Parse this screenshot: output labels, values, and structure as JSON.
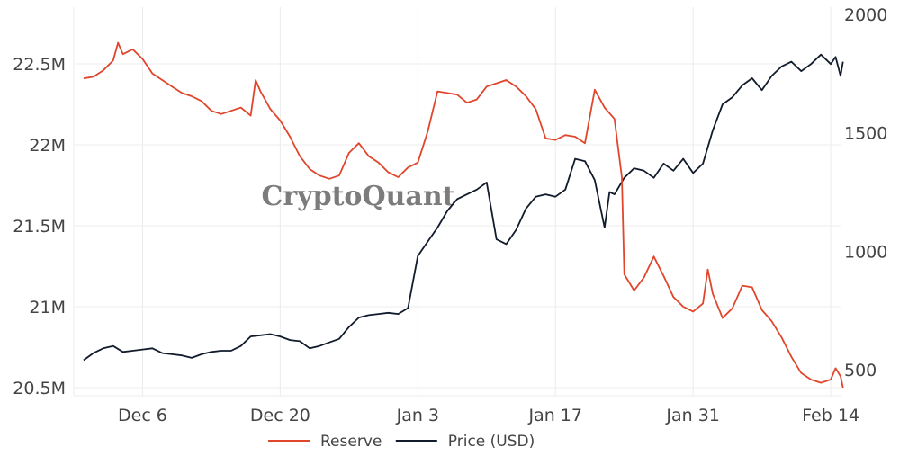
{
  "watermark": "CryptoQuant",
  "colors": {
    "reserve": "#e0462c",
    "price": "#111b2b",
    "grid": "#ececec",
    "text": "#444444"
  },
  "chart_data": {
    "type": "line",
    "grid": true,
    "legend_placement": "bottom-center",
    "x_axis": {
      "type": "date",
      "range": [
        "2020-11-29",
        "2021-02-15"
      ],
      "ticks": [
        {
          "date": "2020-12-06",
          "label": "Dec 6"
        },
        {
          "date": "2020-12-20",
          "label": "Dec 20"
        },
        {
          "date": "2021-01-03",
          "label": "Jan 3"
        },
        {
          "date": "2021-01-17",
          "label": "Jan 17"
        },
        {
          "date": "2021-01-31",
          "label": "Jan 31"
        },
        {
          "date": "2021-02-14",
          "label": "Feb 14"
        }
      ]
    },
    "y_left": {
      "range": [
        20450000,
        22850000
      ],
      "ticks": [
        {
          "value": 20500000,
          "label": "20.5M"
        },
        {
          "value": 21000000,
          "label": "21M"
        },
        {
          "value": 21500000,
          "label": "21.5M"
        },
        {
          "value": 22000000,
          "label": "22M"
        },
        {
          "value": 22500000,
          "label": "22.5M"
        }
      ]
    },
    "y_right": {
      "range": [
        390,
        2030
      ],
      "ticks": [
        {
          "value": 500,
          "label": "500"
        },
        {
          "value": 1000,
          "label": "1000"
        },
        {
          "value": 1500,
          "label": "1500"
        },
        {
          "value": 2000,
          "label": "2000"
        }
      ]
    },
    "series": [
      {
        "name": "Reserve",
        "axis": "left",
        "color": "#e0462c",
        "points": [
          [
            "2020-11-30",
            22410000
          ],
          [
            "2020-12-01",
            22420000
          ],
          [
            "2020-12-02",
            22460000
          ],
          [
            "2020-12-03",
            22520000
          ],
          [
            "2020-12-03 12:00",
            22630000
          ],
          [
            "2020-12-04",
            22560000
          ],
          [
            "2020-12-05",
            22590000
          ],
          [
            "2020-12-06",
            22530000
          ],
          [
            "2020-12-07",
            22440000
          ],
          [
            "2020-12-08",
            22400000
          ],
          [
            "2020-12-09",
            22360000
          ],
          [
            "2020-12-10",
            22320000
          ],
          [
            "2020-12-11",
            22300000
          ],
          [
            "2020-12-12",
            22270000
          ],
          [
            "2020-12-13",
            22210000
          ],
          [
            "2020-12-14",
            22190000
          ],
          [
            "2020-12-15",
            22210000
          ],
          [
            "2020-12-16",
            22230000
          ],
          [
            "2020-12-17",
            22180000
          ],
          [
            "2020-12-17 12:00",
            22400000
          ],
          [
            "2020-12-18",
            22330000
          ],
          [
            "2020-12-19",
            22220000
          ],
          [
            "2020-12-20",
            22150000
          ],
          [
            "2020-12-21",
            22050000
          ],
          [
            "2020-12-22",
            21930000
          ],
          [
            "2020-12-23",
            21850000
          ],
          [
            "2020-12-24",
            21810000
          ],
          [
            "2020-12-25",
            21790000
          ],
          [
            "2020-12-26",
            21810000
          ],
          [
            "2020-12-27",
            21950000
          ],
          [
            "2020-12-28",
            22010000
          ],
          [
            "2020-12-29",
            21930000
          ],
          [
            "2020-12-30",
            21890000
          ],
          [
            "2020-12-31",
            21830000
          ],
          [
            "2021-01-01",
            21800000
          ],
          [
            "2021-01-02",
            21860000
          ],
          [
            "2021-01-03",
            21890000
          ],
          [
            "2021-01-04",
            22080000
          ],
          [
            "2021-01-05",
            22330000
          ],
          [
            "2021-01-06",
            22320000
          ],
          [
            "2021-01-07",
            22310000
          ],
          [
            "2021-01-08",
            22260000
          ],
          [
            "2021-01-09",
            22280000
          ],
          [
            "2021-01-10",
            22360000
          ],
          [
            "2021-01-11",
            22380000
          ],
          [
            "2021-01-12",
            22400000
          ],
          [
            "2021-01-13",
            22360000
          ],
          [
            "2021-01-14",
            22300000
          ],
          [
            "2021-01-15",
            22220000
          ],
          [
            "2021-01-16",
            22040000
          ],
          [
            "2021-01-17",
            22030000
          ],
          [
            "2021-01-18",
            22060000
          ],
          [
            "2021-01-19",
            22050000
          ],
          [
            "2021-01-20",
            22010000
          ],
          [
            "2021-01-21",
            22340000
          ],
          [
            "2021-01-22",
            22230000
          ],
          [
            "2021-01-23",
            22160000
          ],
          [
            "2021-01-23 18:00",
            21800000
          ],
          [
            "2021-01-24",
            21200000
          ],
          [
            "2021-01-25",
            21100000
          ],
          [
            "2021-01-26",
            21180000
          ],
          [
            "2021-01-27",
            21310000
          ],
          [
            "2021-01-28",
            21190000
          ],
          [
            "2021-01-29",
            21060000
          ],
          [
            "2021-01-30",
            21000000
          ],
          [
            "2021-01-31",
            20970000
          ],
          [
            "2021-02-01",
            21020000
          ],
          [
            "2021-02-01 12:00",
            21230000
          ],
          [
            "2021-02-02",
            21080000
          ],
          [
            "2021-02-03",
            20930000
          ],
          [
            "2021-02-04",
            20990000
          ],
          [
            "2021-02-05",
            21130000
          ],
          [
            "2021-02-06",
            21120000
          ],
          [
            "2021-02-07",
            20980000
          ],
          [
            "2021-02-08",
            20910000
          ],
          [
            "2021-02-09",
            20810000
          ],
          [
            "2021-02-10",
            20690000
          ],
          [
            "2021-02-11",
            20590000
          ],
          [
            "2021-02-12",
            20550000
          ],
          [
            "2021-02-13",
            20530000
          ],
          [
            "2021-02-14",
            20550000
          ],
          [
            "2021-02-14 12:00",
            20620000
          ],
          [
            "2021-02-15",
            20570000
          ],
          [
            "2021-02-15 06:00",
            20500000
          ]
        ]
      },
      {
        "name": "Price (USD)",
        "axis": "right",
        "color": "#111b2b",
        "points": [
          [
            "2020-11-30",
            540
          ],
          [
            "2020-12-01",
            570
          ],
          [
            "2020-12-02",
            590
          ],
          [
            "2020-12-03",
            600
          ],
          [
            "2020-12-04",
            575
          ],
          [
            "2020-12-05",
            580
          ],
          [
            "2020-12-06",
            585
          ],
          [
            "2020-12-07",
            590
          ],
          [
            "2020-12-08",
            570
          ],
          [
            "2020-12-09",
            565
          ],
          [
            "2020-12-10",
            560
          ],
          [
            "2020-12-11",
            550
          ],
          [
            "2020-12-12",
            565
          ],
          [
            "2020-12-13",
            575
          ],
          [
            "2020-12-14",
            580
          ],
          [
            "2020-12-15",
            580
          ],
          [
            "2020-12-16",
            600
          ],
          [
            "2020-12-17",
            640
          ],
          [
            "2020-12-18",
            645
          ],
          [
            "2020-12-19",
            650
          ],
          [
            "2020-12-20",
            640
          ],
          [
            "2020-12-21",
            625
          ],
          [
            "2020-12-22",
            620
          ],
          [
            "2020-12-23",
            590
          ],
          [
            "2020-12-24",
            600
          ],
          [
            "2020-12-25",
            615
          ],
          [
            "2020-12-26",
            630
          ],
          [
            "2020-12-27",
            680
          ],
          [
            "2020-12-28",
            720
          ],
          [
            "2020-12-29",
            730
          ],
          [
            "2020-12-30",
            735
          ],
          [
            "2020-12-31",
            740
          ],
          [
            "2021-01-01",
            735
          ],
          [
            "2021-01-02",
            760
          ],
          [
            "2021-01-03",
            980
          ],
          [
            "2021-01-04",
            1040
          ],
          [
            "2021-01-05",
            1100
          ],
          [
            "2021-01-06",
            1170
          ],
          [
            "2021-01-07",
            1220
          ],
          [
            "2021-01-08",
            1240
          ],
          [
            "2021-01-09",
            1260
          ],
          [
            "2021-01-10",
            1290
          ],
          [
            "2021-01-11",
            1050
          ],
          [
            "2021-01-12",
            1030
          ],
          [
            "2021-01-13",
            1090
          ],
          [
            "2021-01-14",
            1180
          ],
          [
            "2021-01-15",
            1230
          ],
          [
            "2021-01-16",
            1240
          ],
          [
            "2021-01-17",
            1230
          ],
          [
            "2021-01-18",
            1260
          ],
          [
            "2021-01-19",
            1390
          ],
          [
            "2021-01-20",
            1380
          ],
          [
            "2021-01-21",
            1300
          ],
          [
            "2021-01-22",
            1100
          ],
          [
            "2021-01-22 12:00",
            1250
          ],
          [
            "2021-01-23",
            1240
          ],
          [
            "2021-01-24",
            1310
          ],
          [
            "2021-01-25",
            1350
          ],
          [
            "2021-01-26",
            1340
          ],
          [
            "2021-01-27",
            1310
          ],
          [
            "2021-01-28",
            1370
          ],
          [
            "2021-01-29",
            1340
          ],
          [
            "2021-01-30",
            1390
          ],
          [
            "2021-01-31",
            1330
          ],
          [
            "2021-02-01",
            1370
          ],
          [
            "2021-02-02",
            1510
          ],
          [
            "2021-02-03",
            1620
          ],
          [
            "2021-02-04",
            1650
          ],
          [
            "2021-02-05",
            1700
          ],
          [
            "2021-02-06",
            1730
          ],
          [
            "2021-02-07",
            1680
          ],
          [
            "2021-02-08",
            1740
          ],
          [
            "2021-02-09",
            1780
          ],
          [
            "2021-02-10",
            1800
          ],
          [
            "2021-02-11",
            1760
          ],
          [
            "2021-02-12",
            1790
          ],
          [
            "2021-02-13",
            1830
          ],
          [
            "2021-02-14",
            1790
          ],
          [
            "2021-02-14 12:00",
            1820
          ],
          [
            "2021-02-15",
            1740
          ],
          [
            "2021-02-15 06:00",
            1800
          ]
        ]
      }
    ]
  }
}
